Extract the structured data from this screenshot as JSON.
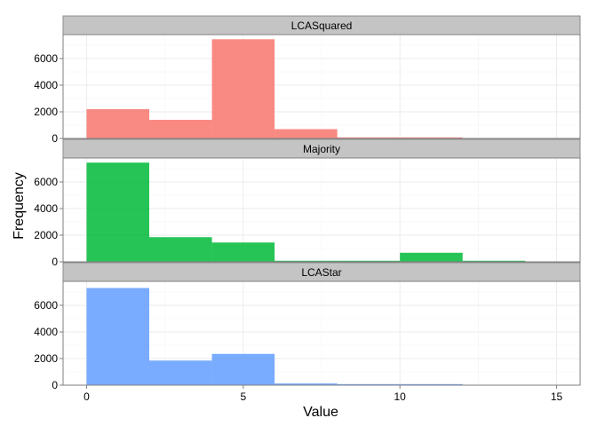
{
  "chart_data": {
    "type": "bar",
    "xlabel": "Value",
    "ylabel": "Frequency",
    "xlim": [
      -0.75,
      15.75
    ],
    "ylim": [
      0,
      7800
    ],
    "xticks": [
      0,
      5,
      10,
      15
    ],
    "yticks": [
      0,
      2000,
      4000,
      6000
    ],
    "bin_width": 2,
    "grid": true,
    "facets": [
      {
        "label": "LCASquared",
        "color": "#F8766D",
        "bins": [
          {
            "x0": 0,
            "x1": 2,
            "value": 2200
          },
          {
            "x0": 2,
            "x1": 4,
            "value": 1400
          },
          {
            "x0": 4,
            "x1": 6,
            "value": 7450
          },
          {
            "x0": 6,
            "x1": 8,
            "value": 700
          },
          {
            "x0": 8,
            "x1": 10,
            "value": 40
          },
          {
            "x0": 10,
            "x1": 12,
            "value": 40
          }
        ]
      },
      {
        "label": "Majority",
        "color": "#00BA38",
        "bins": [
          {
            "x0": 0,
            "x1": 2,
            "value": 7450
          },
          {
            "x0": 2,
            "x1": 4,
            "value": 1850
          },
          {
            "x0": 4,
            "x1": 6,
            "value": 1450
          },
          {
            "x0": 6,
            "x1": 8,
            "value": 60
          },
          {
            "x0": 8,
            "x1": 10,
            "value": 60
          },
          {
            "x0": 10,
            "x1": 12,
            "value": 680
          },
          {
            "x0": 12,
            "x1": 14,
            "value": 40
          }
        ]
      },
      {
        "label": "LCAStar",
        "color": "#619CFF",
        "bins": [
          {
            "x0": 0,
            "x1": 2,
            "value": 7300
          },
          {
            "x0": 2,
            "x1": 4,
            "value": 1850
          },
          {
            "x0": 4,
            "x1": 6,
            "value": 2350
          },
          {
            "x0": 6,
            "x1": 8,
            "value": 130
          },
          {
            "x0": 8,
            "x1": 10,
            "value": 50
          },
          {
            "x0": 10,
            "x1": 12,
            "value": 40
          }
        ]
      }
    ]
  }
}
